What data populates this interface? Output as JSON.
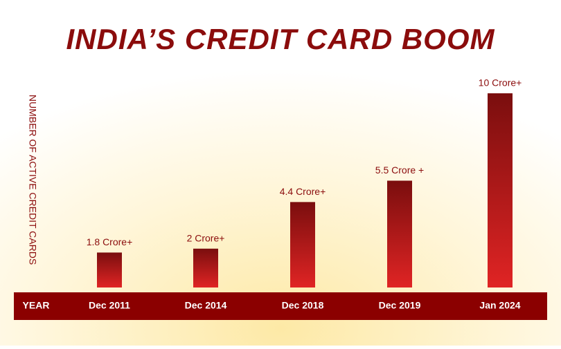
{
  "chart_data": {
    "type": "bar",
    "title": "INDIA’S CREDIT CARD BOOM",
    "y_label": "NUMBER OF ACTIVE CREDIT CARDS",
    "x_label": "YEAR",
    "categories": [
      "Dec 2011",
      "Dec 2014",
      "Dec 2018",
      "Dec 2019",
      "Jan 2024"
    ],
    "values": [
      1.8,
      2,
      4.4,
      5.5,
      10
    ],
    "value_labels": [
      "1.8 Crore+",
      "2 Crore+",
      "4.4 Crore+",
      "5.5 Crore +",
      "10 Crore+"
    ],
    "color": "#e02424"
  }
}
